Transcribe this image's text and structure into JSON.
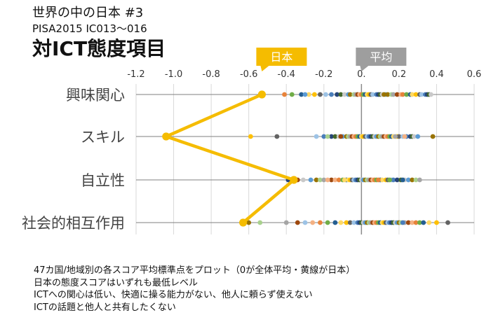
{
  "header": {
    "line1": "世界の中の日本 #3",
    "line2": "PISA2015 IC013～016",
    "title": "対ICT態度項目"
  },
  "callouts": {
    "japan": {
      "label": "日本",
      "color": "#F5BC00"
    },
    "average": {
      "label": "平均",
      "color": "#9E9E9E"
    }
  },
  "notes": [
    "47カ国/地域別の各スコア平均標準点をプロット（0が全体平均・黄線が日本）",
    "日本の態度スコアはいずれも最低レベル",
    "ICTへの関心は低い、快適に操る能力がない、他人に頼らず使えない",
    "ICTの話題と他人と共有したくない"
  ],
  "chart_data": {
    "type": "scatter",
    "x_axis": {
      "position": "top",
      "range": [
        -1.2,
        0.6
      ],
      "ticks": [
        -1.2,
        -1.0,
        -0.8,
        -0.6,
        -0.4,
        -0.2,
        0,
        0.2,
        0.4,
        0.6
      ],
      "tick_labels": [
        "-1.2",
        "-1.0",
        "-0.8",
        "-0.6",
        "-0.4",
        "-0.2",
        "0.",
        "0.2",
        "0.4",
        "0.6"
      ],
      "grid": true
    },
    "categories": [
      "興味関心",
      "スキル",
      "自立性",
      "社会的相互作用"
    ],
    "japan": {
      "values": [
        -0.53,
        -1.04,
        -0.36,
        -0.63
      ],
      "color": "#F5BC00"
    },
    "palette": [
      "#E8833A",
      "#4A7EBB",
      "#A5A5A5",
      "#FFC000",
      "#5B9BD5",
      "#70AD47",
      "#264478",
      "#9E480E",
      "#636363",
      "#997300",
      "#255E91",
      "#43682B",
      "#F4B183",
      "#9DC3E6",
      "#A9D18E",
      "#FFD966",
      "#C9C9C9"
    ],
    "countries": [
      [
        -0.41,
        -0.37,
        -0.32,
        -0.28,
        -0.25,
        -0.22,
        -0.19,
        -0.16,
        -0.13,
        -0.11,
        -0.09,
        -0.07,
        -0.06,
        -0.04,
        -0.03,
        -0.02,
        -0.01,
        0.0,
        0.01,
        0.02,
        0.03,
        0.04,
        0.05,
        0.06,
        0.08,
        0.09,
        0.1,
        0.11,
        0.13,
        0.14,
        0.16,
        0.17,
        0.19,
        0.21,
        0.22,
        0.24,
        0.26,
        0.27,
        0.29,
        0.31,
        0.32,
        0.34,
        0.35,
        0.36,
        0.37,
        -0.3,
        0.12
      ],
      [
        -0.59,
        -0.45,
        -0.24,
        -0.2,
        -0.16,
        -0.14,
        -0.12,
        -0.1,
        -0.08,
        -0.07,
        -0.06,
        -0.05,
        -0.04,
        -0.03,
        -0.02,
        -0.01,
        0.0,
        0.01,
        0.02,
        0.03,
        0.04,
        0.05,
        0.06,
        0.07,
        0.08,
        0.09,
        0.1,
        0.11,
        0.12,
        0.13,
        0.14,
        0.15,
        0.16,
        0.17,
        0.19,
        0.2,
        0.22,
        0.24,
        0.26,
        0.27,
        0.28,
        0.3,
        0.38,
        -0.18,
        0.18,
        -0.11,
        0.23
      ],
      [
        -0.39,
        -0.35,
        -0.31,
        -0.27,
        -0.24,
        -0.22,
        -0.2,
        -0.16,
        -0.14,
        -0.12,
        -0.1,
        -0.08,
        -0.07,
        -0.06,
        -0.05,
        -0.04,
        -0.03,
        -0.02,
        -0.01,
        0.0,
        0.01,
        0.02,
        0.03,
        0.04,
        0.05,
        0.06,
        0.07,
        0.08,
        0.1,
        0.11,
        0.13,
        0.14,
        0.16,
        0.17,
        0.19,
        0.21,
        0.23,
        0.25,
        0.27,
        0.29,
        0.31,
        -0.34,
        -0.18,
        0.09,
        0.15,
        0.22,
        -0.09
      ],
      [
        -0.6,
        -0.54,
        -0.4,
        -0.34,
        -0.26,
        -0.22,
        -0.18,
        -0.14,
        -0.11,
        -0.08,
        -0.06,
        -0.04,
        -0.02,
        -0.01,
        0.0,
        0.01,
        0.02,
        0.03,
        0.04,
        0.05,
        0.06,
        0.07,
        0.08,
        0.09,
        0.1,
        0.11,
        0.12,
        0.13,
        0.14,
        0.15,
        0.16,
        0.17,
        0.18,
        0.19,
        0.2,
        0.21,
        0.23,
        0.25,
        0.27,
        0.29,
        0.31,
        0.33,
        0.36,
        0.4,
        0.46,
        -0.3,
        0.22
      ]
    ]
  }
}
